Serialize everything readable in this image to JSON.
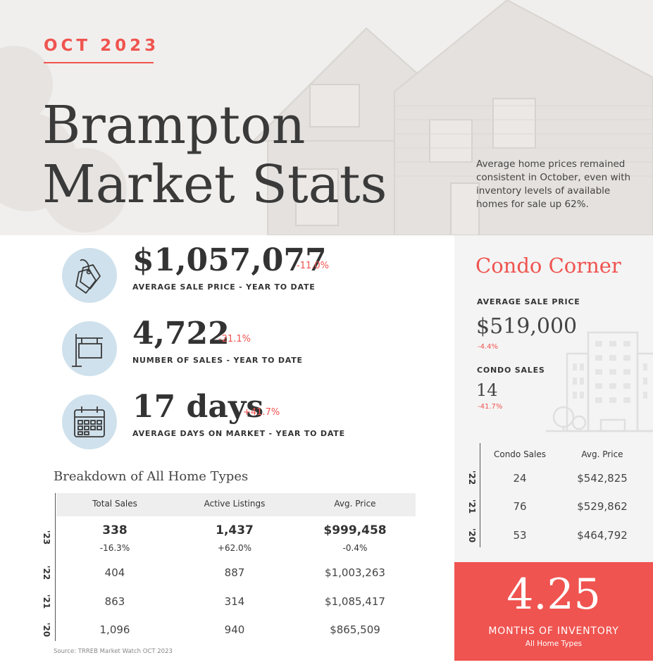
{
  "header": {
    "month": "OCT 2023",
    "title_line1": "Brampton",
    "title_line2": "Market Stats",
    "intro": "Average home prices remained consistent in October, even with inventory levels of available homes for sale up 62%."
  },
  "stats": [
    {
      "icon": "price-tag-icon",
      "value": "$1,057,077",
      "change": "-11.0%",
      "label": "AVERAGE SALE PRICE - YEAR TO DATE"
    },
    {
      "icon": "sign-post-icon",
      "value": "4,722",
      "change": "-21.1%",
      "label": "NUMBER OF SALES - YEAR TO DATE"
    },
    {
      "icon": "calendar-icon",
      "value": "17 days",
      "change": "+41.7%",
      "label": "AVERAGE DAYS ON MARKET - YEAR TO DATE"
    }
  ],
  "breakdown": {
    "title": "Breakdown of All Home Types",
    "headers": [
      "Total Sales",
      "Active Listings",
      "Avg. Price"
    ],
    "rows": [
      {
        "year": "'23",
        "cells": [
          "338",
          "1,437",
          "$999,458"
        ],
        "changes": [
          "-16.3%",
          "+62.0%",
          "-0.4%"
        ]
      },
      {
        "year": "'22",
        "cells": [
          "404",
          "887",
          "$1,003,263"
        ]
      },
      {
        "year": "'21",
        "cells": [
          "863",
          "314",
          "$1,085,417"
        ]
      },
      {
        "year": "'20",
        "cells": [
          "1,096",
          "940",
          "$865,509"
        ]
      }
    ],
    "source": "Source: TRREB Market Watch OCT 2023"
  },
  "condo": {
    "title": "Condo Corner",
    "avg_label": "AVERAGE SALE PRICE",
    "avg_value": "$519,000",
    "avg_change": "-4.4%",
    "sales_label": "CONDO SALES",
    "sales_value": "14",
    "sales_change": "-41.7%",
    "headers": [
      "Condo Sales",
      "Avg. Price"
    ],
    "rows": [
      {
        "year": "'22",
        "cells": [
          "24",
          "$542,825"
        ]
      },
      {
        "year": "'21",
        "cells": [
          "76",
          "$529,862"
        ]
      },
      {
        "year": "'20",
        "cells": [
          "53",
          "$464,792"
        ]
      }
    ]
  },
  "inventory": {
    "value": "4.25",
    "label": "MONTHS OF INVENTORY",
    "sublabel": "All Home Types"
  },
  "colors": {
    "accent": "#ef5450",
    "icon_circle": "#cfe1ec",
    "panel": "#f4f4f4"
  }
}
